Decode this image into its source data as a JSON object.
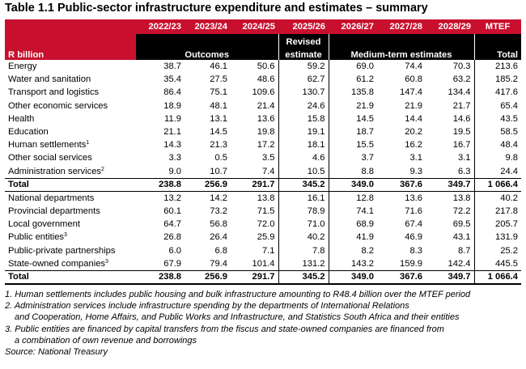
{
  "title": "Table 1.1  Public-sector infrastructure expenditure and estimates – summary",
  "header": {
    "years": [
      "2022/23",
      "2023/24",
      "2024/25",
      "2025/26",
      "2026/27",
      "2027/28",
      "2028/29"
    ],
    "mtef": "MTEF",
    "r_billion": "R billion",
    "outcomes": "Outcomes",
    "revised": "Revised",
    "estimate": "estimate",
    "medium_term": "Medium-term estimates",
    "total": "Total"
  },
  "rows": [
    {
      "label": "Energy",
      "sup": "",
      "values": [
        "38.7",
        "46.1",
        "50.6",
        "59.2",
        "69.0",
        "74.4",
        "70.3",
        "213.6"
      ]
    },
    {
      "label": "Water and sanitation",
      "sup": "",
      "values": [
        "35.4",
        "27.5",
        "48.6",
        "62.7",
        "61.2",
        "60.8",
        "63.2",
        "185.2"
      ]
    },
    {
      "label": "Transport and logistics",
      "sup": "",
      "values": [
        "86.4",
        "75.1",
        "109.6",
        "130.7",
        "135.8",
        "147.4",
        "134.4",
        "417.6"
      ]
    },
    {
      "label": "Other economic services",
      "sup": "",
      "values": [
        "18.9",
        "48.1",
        "21.4",
        "24.6",
        "21.9",
        "21.9",
        "21.7",
        "65.4"
      ]
    },
    {
      "label": "Health",
      "sup": "",
      "values": [
        "11.9",
        "13.1",
        "13.6",
        "15.8",
        "14.5",
        "14.4",
        "14.6",
        "43.5"
      ]
    },
    {
      "label": "Education",
      "sup": "",
      "values": [
        "21.1",
        "14.5",
        "19.8",
        "19.1",
        "18.7",
        "20.2",
        "19.5",
        "58.5"
      ]
    },
    {
      "label": "Human settlements",
      "sup": "1",
      "values": [
        "14.3",
        "21.3",
        "17.2",
        "18.1",
        "15.5",
        "16.2",
        "16.7",
        "48.4"
      ]
    },
    {
      "label": "Other social services",
      "sup": "",
      "values": [
        "3.3",
        "0.5",
        "3.5",
        "4.6",
        "3.7",
        "3.1",
        "3.1",
        "9.8"
      ]
    },
    {
      "label": "Administration services",
      "sup": "2",
      "values": [
        "9.0",
        "10.7",
        "7.4",
        "10.5",
        "8.8",
        "9.3",
        "6.3",
        "24.4"
      ]
    }
  ],
  "total1": {
    "label": "Total",
    "values": [
      "238.8",
      "256.9",
      "291.7",
      "345.2",
      "349.0",
      "367.6",
      "349.7",
      "1 066.4"
    ]
  },
  "rows2": [
    {
      "label": "National departments",
      "sup": "",
      "values": [
        "13.2",
        "14.2",
        "13.8",
        "16.1",
        "12.8",
        "13.6",
        "13.8",
        "40.2"
      ]
    },
    {
      "label": "Provincial departments",
      "sup": "",
      "values": [
        "60.1",
        "73.2",
        "71.5",
        "78.9",
        "74.1",
        "71.6",
        "72.2",
        "217.8"
      ]
    },
    {
      "label": "Local government",
      "sup": "",
      "values": [
        "64.7",
        "56.8",
        "72.0",
        "71.0",
        "68.9",
        "67.4",
        "69.5",
        "205.7"
      ]
    },
    {
      "label": "Public entities",
      "sup": "3",
      "values": [
        "26.8",
        "26.4",
        "25.9",
        "40.2",
        "41.9",
        "46.9",
        "43.1",
        "131.9"
      ]
    },
    {
      "label": "Public-private partnerships",
      "sup": "",
      "values": [
        "6.0",
        "6.8",
        "7.1",
        "7.8",
        "8.2",
        "8.3",
        "8.7",
        "25.2"
      ]
    },
    {
      "label": "State-owned companies",
      "sup": "3",
      "values": [
        "67.9",
        "79.4",
        "101.4",
        "131.2",
        "143.2",
        "159.9",
        "142.4",
        "445.5"
      ]
    }
  ],
  "total2": {
    "label": "Total",
    "values": [
      "238.8",
      "256.9",
      "291.7",
      "345.2",
      "349.0",
      "367.6",
      "349.7",
      "1 066.4"
    ]
  },
  "notes": {
    "n1": "1. Human settlements includes public housing and bulk infrastructure amounting to R48.4 billion over the MTEF period",
    "n2a": "2. Administration services include infrastructure spending by the departments of International Relations",
    "n2b": "and Cooperation, Home Affairs, and Public Works and Infrastructure, and Statistics South Africa and their entities",
    "n3a": "3. Public entities are financed by capital transfers from the fiscus and state-owned companies are financed from",
    "n3b": "a combination of own revenue and borrowings",
    "source": "Source: National Treasury"
  },
  "colors": {
    "accent_red": "#c8102e",
    "header_black": "#000000"
  }
}
